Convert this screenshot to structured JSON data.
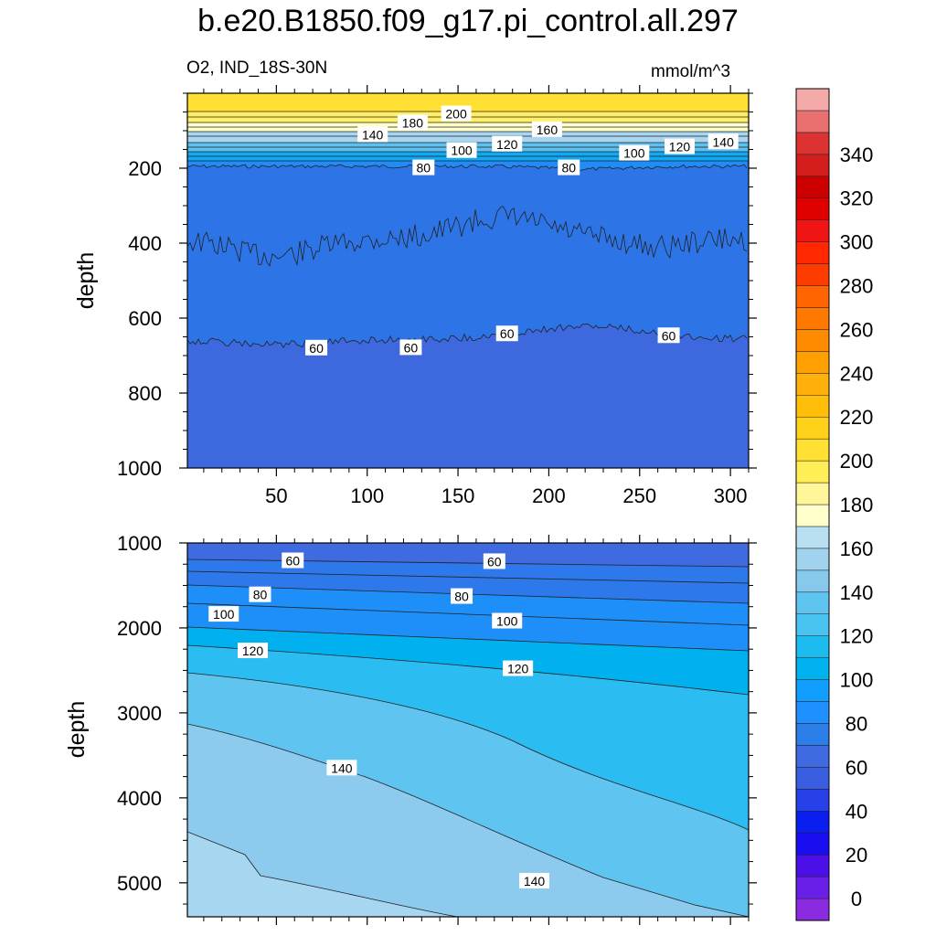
{
  "title": "b.e20.B1850.f09_g17.pi_control.all.297",
  "subtitle_left": "O2, IND_18S-30N",
  "subtitle_right": "mmol/m^3",
  "chart_data": [
    {
      "type": "contour",
      "panel": "upper",
      "ylabel": "depth",
      "xlim": [
        1,
        310
      ],
      "ylim": [
        1000,
        0
      ],
      "x_ticks": [
        50,
        100,
        150,
        200,
        250,
        300
      ],
      "x_tick_labels": [
        "50",
        "100",
        "150",
        "200",
        "250",
        "300"
      ],
      "y_ticks": [
        200,
        400,
        600,
        800,
        1000
      ],
      "y_tick_labels": [
        "200",
        "400",
        "600",
        "800",
        "1000"
      ],
      "contour_interval": 20,
      "contour_labels": [
        {
          "text": "200",
          "x": 149,
          "y": 55
        },
        {
          "text": "180",
          "x": 125,
          "y": 79
        },
        {
          "text": "140",
          "x": 103,
          "y": 111
        },
        {
          "text": "160",
          "x": 199,
          "y": 97
        },
        {
          "text": "120",
          "x": 177,
          "y": 136
        },
        {
          "text": "100",
          "x": 152,
          "y": 153
        },
        {
          "text": "100",
          "x": 247,
          "y": 160
        },
        {
          "text": "120",
          "x": 272,
          "y": 143
        },
        {
          "text": "140",
          "x": 296,
          "y": 130
        },
        {
          "text": "80",
          "x": 131,
          "y": 199
        },
        {
          "text": "80",
          "x": 211,
          "y": 199
        },
        {
          "text": "60",
          "x": 72,
          "y": 680
        },
        {
          "text": "60",
          "x": 124,
          "y": 679
        },
        {
          "text": "60",
          "x": 177,
          "y": 642
        },
        {
          "text": "60",
          "x": 266,
          "y": 647
        }
      ]
    },
    {
      "type": "contour",
      "panel": "lower",
      "ylabel": "depth",
      "xlim": [
        1,
        310
      ],
      "ylim": [
        5400,
        1000
      ],
      "y_ticks": [
        1000,
        2000,
        3000,
        4000,
        5000
      ],
      "y_tick_labels": [
        "1000",
        "2000",
        "3000",
        "4000",
        "5000"
      ],
      "contour_interval": 20,
      "contour_labels": [
        {
          "text": "60",
          "x": 59,
          "y": 1210
        },
        {
          "text": "60",
          "x": 170,
          "y": 1220
        },
        {
          "text": "80",
          "x": 41,
          "y": 1610
        },
        {
          "text": "80",
          "x": 152,
          "y": 1630
        },
        {
          "text": "100",
          "x": 21,
          "y": 1840
        },
        {
          "text": "100",
          "x": 177,
          "y": 1920
        },
        {
          "text": "120",
          "x": 37,
          "y": 2270
        },
        {
          "text": "120",
          "x": 183,
          "y": 2480
        },
        {
          "text": "140",
          "x": 86,
          "y": 3650
        },
        {
          "text": "140",
          "x": 192,
          "y": 4980
        }
      ]
    }
  ],
  "colorbar": {
    "labels": [
      "0",
      "20",
      "40",
      "60",
      "80",
      "100",
      "120",
      "140",
      "160",
      "180",
      "200",
      "220",
      "240",
      "260",
      "280",
      "300",
      "320",
      "340"
    ],
    "colors": [
      "#8a2be2",
      "#6a1fe8",
      "#4b0fe8",
      "#1a0df0",
      "#0a1ef0",
      "#2840e8",
      "#3a5ee0",
      "#3f6ae0",
      "#2c7ee8",
      "#1e90ff",
      "#109eff",
      "#00b2ee",
      "#1cbcf0",
      "#4ac3f0",
      "#60c4f0",
      "#87c9eb",
      "#a1d3ee",
      "#b8dff2",
      "#ffffcc",
      "#fff599",
      "#ffee55",
      "#ffe033",
      "#ffd21a",
      "#ffbe0a",
      "#ffb00a",
      "#ffa000",
      "#ff8c00",
      "#ff7800",
      "#ff6400",
      "#ff3c00",
      "#ff2800",
      "#f01414",
      "#e00000",
      "#cc0000",
      "#d41e1e",
      "#dc3232",
      "#e87070",
      "#f5aaaa"
    ]
  }
}
